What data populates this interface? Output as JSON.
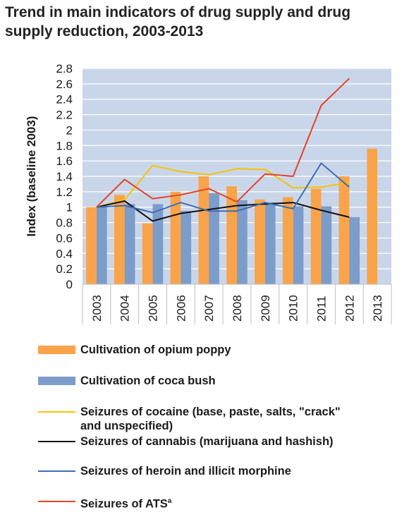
{
  "title": "Trend in main indicators of drug supply and drug supply reduction, 2003-2013",
  "chart_data": {
    "type": "bar",
    "title": "Trend in main indicators of drug supply and drug supply reduction, 2003-2013",
    "ylabel": "Index (baseline 2003)",
    "xlabel": "",
    "ylim": [
      0,
      2.8
    ],
    "yticks": [
      "0",
      "0.2",
      "0.4",
      "0.6",
      "0.8",
      "1",
      "1.2",
      "1.4",
      "1.6",
      "1.8",
      "2",
      "2.2",
      "2.4",
      "2.6",
      "2.8"
    ],
    "categories": [
      "2003",
      "2004",
      "2005",
      "2006",
      "2007",
      "2008",
      "2009",
      "2010",
      "2011",
      "2012",
      "2013"
    ],
    "grid": true,
    "plot_background": "#c9d6ea",
    "legend_position": "bottom",
    "bar_series": [
      {
        "name": "Cultivation of opium poppy",
        "color": "#f9a44a",
        "values": [
          1.0,
          1.16,
          0.79,
          1.2,
          1.4,
          1.27,
          1.1,
          1.13,
          1.24,
          1.4,
          1.76
        ]
      },
      {
        "name": "Cultivation of coca bush",
        "color": "#7c9cca",
        "values": [
          1.0,
          1.04,
          1.04,
          0.95,
          1.18,
          1.09,
          1.06,
          1.01,
          1.01,
          0.87,
          null
        ]
      }
    ],
    "line_series": [
      {
        "name": "Seizures of cocaine (base, paste, salts, \"crack\" and unspecified)",
        "color": "#f5c400",
        "values": [
          1.0,
          1.1,
          1.54,
          1.46,
          1.42,
          1.5,
          1.49,
          1.25,
          1.26,
          1.32,
          null
        ]
      },
      {
        "name": "Seizures of cannabis (marijuana and hashish)",
        "color": "#111111",
        "values": [
          1.0,
          1.08,
          0.82,
          0.92,
          0.97,
          1.02,
          1.04,
          1.06,
          0.96,
          0.87,
          null
        ]
      },
      {
        "name": "Seizures of heroin and illicit morphine",
        "color": "#3f6db3",
        "values": [
          1.0,
          1.02,
          0.93,
          1.06,
          0.95,
          0.95,
          1.06,
          0.98,
          1.57,
          1.26,
          null
        ]
      },
      {
        "name": "Seizures of ATS",
        "name_superscript": "a",
        "color": "#e2442a",
        "values": [
          1.0,
          1.36,
          1.11,
          1.16,
          1.24,
          1.07,
          1.43,
          1.4,
          2.32,
          2.67,
          null
        ]
      }
    ]
  },
  "legend": [
    {
      "kind": "bar",
      "label": "Cultivation of opium poppy",
      "color": "#f9a44a"
    },
    {
      "kind": "bar",
      "label": "Cultivation of coca bush",
      "color": "#7c9cca"
    },
    {
      "kind": "line",
      "label": "Seizures of cocaine (base, paste, salts, \"crack\"",
      "label2": "and unspecified)",
      "color": "#f5c400"
    },
    {
      "kind": "line",
      "label": "Seizures of cannabis (marijuana and hashish)",
      "color": "#111111"
    },
    {
      "kind": "line",
      "label": "Seizures of heroin and illicit morphine",
      "color": "#3f6db3"
    },
    {
      "kind": "line",
      "label": "Seizures of ATS",
      "sup": "a",
      "color": "#e2442a"
    }
  ]
}
